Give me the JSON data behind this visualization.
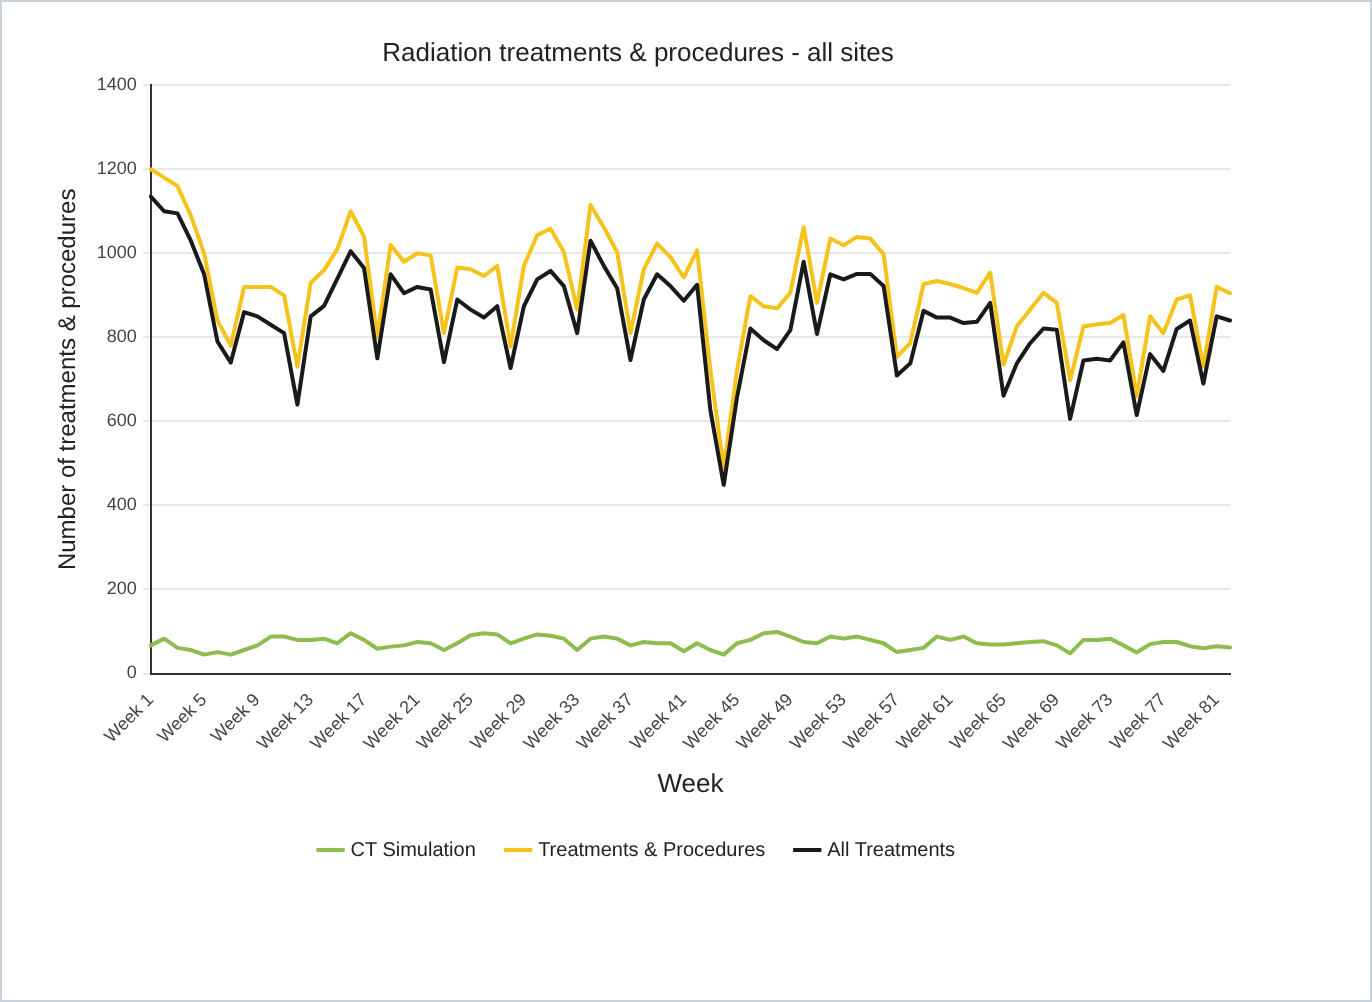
{
  "chart_data": {
    "type": "line",
    "title": "Radiation treatments & procedures - all sites",
    "xlabel": "Week",
    "ylabel": "Number of treatments & procedures",
    "categories": [
      "Week 1",
      null,
      null,
      null,
      "Week 5",
      null,
      null,
      null,
      "Week 9",
      null,
      null,
      null,
      "Week 13",
      null,
      null,
      null,
      "Week 17",
      null,
      null,
      null,
      "Week 21",
      null,
      null,
      null,
      "Week 25",
      null,
      null,
      null,
      "Week 29",
      null,
      null,
      null,
      "Week 33",
      null,
      null,
      null,
      "Week 37",
      null,
      null,
      null,
      "Week 41",
      null,
      null,
      null,
      "Week 45",
      null,
      null,
      null,
      "Week 49",
      null,
      null,
      null,
      "Week 53",
      null,
      null,
      null,
      "Week 57",
      null,
      null,
      null,
      "Week 61",
      null,
      null,
      null,
      "Week 65",
      null,
      null,
      null,
      "Week 69",
      null,
      null,
      null,
      "Week 73",
      null,
      null,
      null,
      "Week 77",
      null,
      null,
      null,
      "Week 81",
      null
    ],
    "series": [
      {
        "name": "CT Simulation",
        "color": "#8fbc4f",
        "values": [
          67,
          83,
          61,
          56,
          45,
          51,
          45,
          56,
          67,
          88,
          88,
          80,
          80,
          83,
          72,
          96,
          80,
          59,
          64,
          67,
          75,
          72,
          56,
          72,
          91,
          96,
          93,
          72,
          83,
          93,
          90,
          83,
          56,
          83,
          88,
          83,
          67,
          75,
          72,
          72,
          53,
          72,
          56,
          45,
          72,
          80,
          96,
          99,
          88,
          75,
          72,
          88,
          83,
          88,
          80,
          72,
          51,
          56,
          61,
          88,
          80,
          88,
          72,
          69,
          69,
          72,
          75,
          77,
          67,
          48,
          80,
          80,
          83,
          67,
          50,
          70,
          75,
          75,
          65,
          60,
          65,
          62
        ]
      },
      {
        "name": "Treatments & Procedures",
        "color": "#f5c41c",
        "values": [
          1200,
          1180,
          1160,
          1090,
          1000,
          840,
          780,
          920,
          920,
          920,
          900,
          730,
          930,
          960,
          1010,
          1100,
          1040,
          800,
          1020,
          980,
          1000,
          995,
          810,
          966,
          962,
          946,
          970,
          778,
          970,
          1043,
          1059,
          1003,
          866,
          1115,
          1062,
          1003,
          810,
          962,
          1023,
          991,
          943,
          1007,
          722,
          489,
          722,
          898,
          874,
          869,
          906,
          1062,
          882,
          1035,
          1019,
          1039,
          1035,
          998,
          754,
          786,
          927,
          934,
          927,
          917,
          906,
          954,
          735,
          826,
          866,
          906,
          882,
          698,
          826,
          831,
          834,
          853,
          660,
          850,
          810,
          890,
          900,
          730,
          920,
          905
        ]
      },
      {
        "name": "All Treatments",
        "color": "#1a1a1a",
        "values": [
          1135,
          1100,
          1095,
          1030,
          950,
          790,
          740,
          860,
          850,
          830,
          810,
          640,
          850,
          875,
          940,
          1005,
          965,
          750,
          950,
          905,
          920,
          914,
          741,
          890,
          866,
          847,
          874,
          727,
          874,
          938,
          958,
          922,
          810,
          1030,
          970,
          917,
          746,
          890,
          950,
          922,
          887,
          925,
          626,
          449,
          658,
          821,
          793,
          772,
          817,
          980,
          808,
          950,
          938,
          951,
          951,
          922,
          709,
          738,
          863,
          847,
          847,
          834,
          837,
          882,
          661,
          738,
          786,
          821,
          818,
          606,
          745,
          749,
          745,
          788,
          615,
          760,
          720,
          820,
          840,
          690,
          850,
          840
        ]
      }
    ],
    "ylim": [
      0,
      1400
    ],
    "yticks": [
      0,
      200,
      400,
      600,
      800,
      1000,
      1200,
      1400
    ],
    "grid": "y",
    "legend": "bottom",
    "marker": "none",
    "line_style": "solid"
  }
}
